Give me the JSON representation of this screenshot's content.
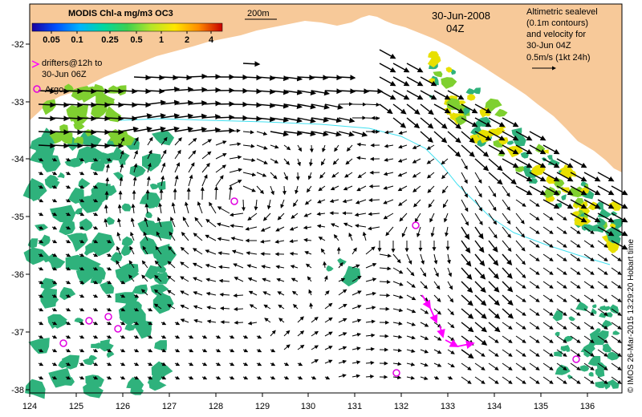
{
  "map": {
    "colorbar_title": "MODIS Chl-a mg/m3 OC3",
    "colorbar_ticks": [
      "0.05",
      "0.1",
      "0.25",
      "0.5",
      "1",
      "2",
      "4"
    ],
    "colorbar_colors": [
      "#1a00a0",
      "#0050ff",
      "#00b4ff",
      "#00d8a0",
      "#3cd050",
      "#b4e628",
      "#ffe600",
      "#ff8c00",
      "#c80000"
    ],
    "contour_label": "200m",
    "date": "30-Jun-2008",
    "time": "04Z",
    "drifter_legend": [
      "drifters@12h to",
      "30-Jun 06Z"
    ],
    "argo_legend": "Argo",
    "info_lines": [
      "Altimetric sealevel",
      "(0.1m contours)",
      "and velocity for",
      "30-Jun 04Z",
      "0.5m/s (1kt 24h)"
    ],
    "credit": "© IMOS 26-Mar-2015 13:29:20 Hobart time",
    "lon_ticks": [
      "124",
      "125",
      "126",
      "127",
      "128",
      "129",
      "130",
      "131",
      "132",
      "133",
      "134",
      "135",
      "136"
    ],
    "lat_ticks": [
      "-32",
      "-33",
      "-34",
      "-35",
      "-36",
      "-37",
      "-38"
    ],
    "colors": {
      "land": "#f7c999",
      "ocean": "#ffffff",
      "contour": "#40e0f0",
      "drifter": "#ff00ff",
      "argo": "#e000e0",
      "chl_green": "#2fb27c",
      "chl_lime": "#7fd030",
      "chl_yellow": "#e8e000"
    }
  }
}
